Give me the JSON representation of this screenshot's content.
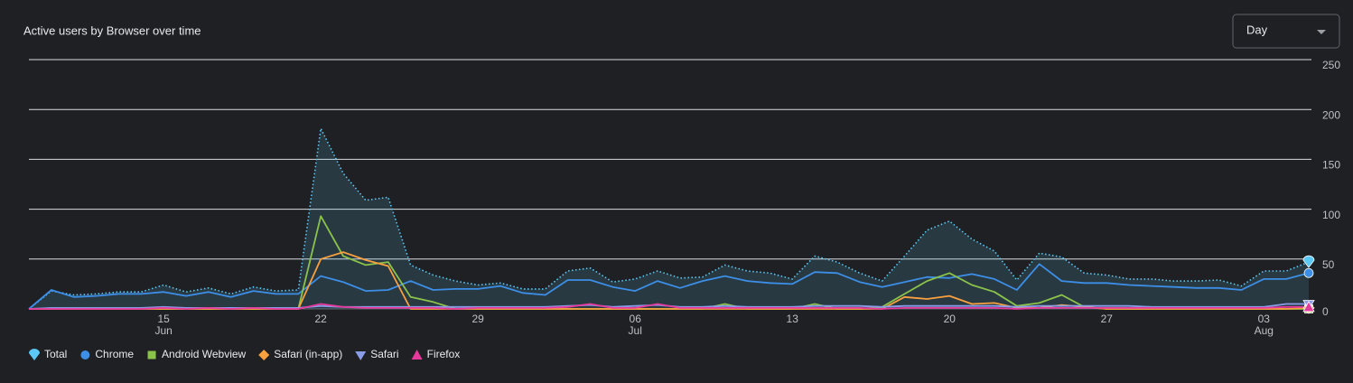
{
  "chart_data": {
    "type": "line",
    "title": "Active users by Browser over time",
    "period_selector": "Day",
    "categories": [
      null,
      null,
      null,
      null,
      null,
      null,
      "15",
      null,
      null,
      null,
      null,
      null,
      null,
      "22",
      null,
      null,
      null,
      null,
      null,
      null,
      "29",
      null,
      null,
      null,
      null,
      null,
      null,
      "06",
      null,
      null,
      null,
      null,
      null,
      null,
      "13",
      null,
      null,
      null,
      null,
      null,
      null,
      "20",
      null,
      null,
      null,
      null,
      null,
      null,
      "27",
      null,
      null,
      null,
      null,
      null,
      null,
      "03",
      null,
      null
    ],
    "category_months": [
      null,
      null,
      null,
      null,
      null,
      null,
      "Jun",
      null,
      null,
      null,
      null,
      null,
      null,
      null,
      null,
      null,
      null,
      null,
      null,
      null,
      null,
      null,
      null,
      null,
      null,
      null,
      null,
      "Jul",
      null,
      null,
      null,
      null,
      null,
      null,
      null,
      null,
      null,
      null,
      null,
      null,
      null,
      null,
      null,
      null,
      null,
      null,
      null,
      null,
      null,
      null,
      null,
      null,
      null,
      null,
      null,
      "Aug",
      null,
      null
    ],
    "ylim": [
      0,
      250
    ],
    "yticks": [
      0,
      50,
      100,
      150,
      200,
      250
    ],
    "grid": true,
    "series": [
      {
        "name": "Total",
        "color": "#5bc8f5",
        "style": "dotted",
        "fill": true,
        "marker": "pin",
        "values": [
          0,
          18,
          14,
          15,
          17,
          17,
          24,
          17,
          21,
          15,
          22,
          18,
          19,
          181,
          136,
          109,
          112,
          44,
          34,
          28,
          24,
          26,
          20,
          20,
          38,
          41,
          27,
          30,
          38,
          31,
          32,
          44,
          38,
          36,
          30,
          53,
          47,
          36,
          28,
          53,
          79,
          88,
          70,
          58,
          29,
          56,
          52,
          36,
          34,
          30,
          30,
          28,
          28,
          29,
          23,
          38,
          38,
          47
        ]
      },
      {
        "name": "Chrome",
        "color": "#3d8ee6",
        "marker": "circle",
        "values": [
          0,
          19,
          12,
          13,
          15,
          15,
          17,
          13,
          17,
          12,
          18,
          15,
          15,
          33,
          27,
          18,
          19,
          28,
          19,
          20,
          20,
          23,
          16,
          14,
          29,
          29,
          22,
          18,
          28,
          21,
          28,
          33,
          28,
          26,
          25,
          37,
          36,
          27,
          22,
          27,
          32,
          31,
          35,
          30,
          19,
          45,
          28,
          26,
          26,
          24,
          23,
          22,
          21,
          21,
          19,
          30,
          30,
          36
        ]
      },
      {
        "name": "Android Webview",
        "color": "#8bc34a",
        "marker": "square",
        "values": [
          0,
          0,
          0,
          0,
          0,
          0,
          0,
          0,
          0,
          0,
          0,
          0,
          0,
          93,
          53,
          44,
          47,
          12,
          7,
          0,
          0,
          0,
          0,
          0,
          0,
          0,
          0,
          0,
          0,
          0,
          0,
          5,
          0,
          0,
          0,
          5,
          0,
          0,
          2,
          15,
          28,
          36,
          24,
          17,
          3,
          6,
          14,
          2,
          0,
          0,
          0,
          0,
          0,
          0,
          0,
          0,
          0,
          0
        ]
      },
      {
        "name": "Safari (in-app)",
        "color": "#f9a03f",
        "marker": "diamond",
        "values": [
          0,
          0,
          0,
          0,
          0,
          0,
          0,
          0,
          0,
          0,
          0,
          0,
          0,
          50,
          57,
          49,
          43,
          0,
          0,
          0,
          0,
          0,
          0,
          0,
          0,
          0,
          0,
          0,
          0,
          0,
          0,
          0,
          0,
          0,
          0,
          0,
          0,
          0,
          0,
          12,
          10,
          13,
          5,
          6,
          1,
          1,
          4,
          2,
          0,
          0,
          0,
          0,
          0,
          0,
          0,
          0,
          0,
          1
        ]
      },
      {
        "name": "Safari",
        "color": "#8a9be8",
        "marker": "triangle-down",
        "values": [
          0,
          1,
          1,
          1,
          1,
          1,
          2,
          1,
          1,
          1,
          1,
          1,
          1,
          3,
          2,
          2,
          2,
          2,
          2,
          2,
          2,
          2,
          2,
          2,
          3,
          4,
          2,
          3,
          4,
          2,
          2,
          3,
          2,
          2,
          2,
          3,
          3,
          3,
          2,
          3,
          3,
          3,
          3,
          3,
          2,
          3,
          3,
          3,
          3,
          3,
          2,
          2,
          2,
          2,
          2,
          2,
          5,
          5
        ]
      },
      {
        "name": "Firefox",
        "color": "#e6399b",
        "marker": "triangle-up",
        "values": [
          0,
          0,
          0,
          0,
          0,
          0,
          1,
          0,
          1,
          0,
          1,
          0,
          0,
          5,
          2,
          1,
          1,
          1,
          1,
          0,
          1,
          1,
          1,
          1,
          2,
          5,
          1,
          1,
          5,
          1,
          1,
          1,
          1,
          1,
          1,
          1,
          1,
          1,
          0,
          1,
          1,
          1,
          1,
          1,
          0,
          1,
          1,
          1,
          1,
          1,
          1,
          1,
          1,
          1,
          1,
          1,
          2,
          2
        ]
      }
    ]
  }
}
